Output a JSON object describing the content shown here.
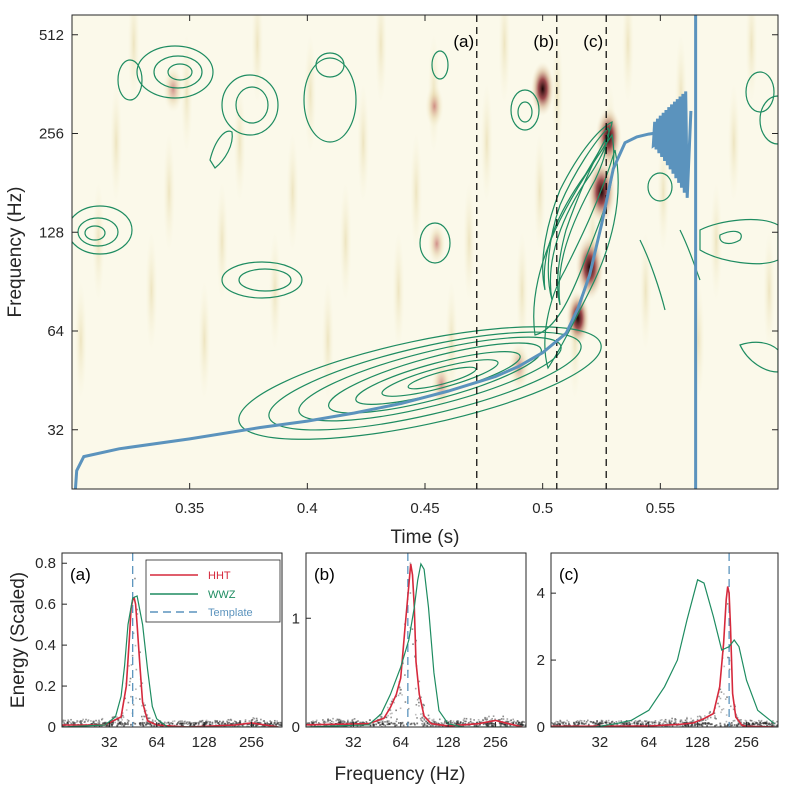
{
  "colors": {
    "hht": "#d6293c",
    "wwz": "#1e8c61",
    "template": "#5b93bd",
    "axis": "#262626",
    "heat_light": "#f7f3d8",
    "heat_mid": "#e4d6a8",
    "heat_dark": "#1a0808"
  },
  "chart_data": [
    {
      "id": "main",
      "type": "heatmap",
      "xlabel": "Time (s)",
      "ylabel": "Frequency (Hz)",
      "xlim": [
        0.3,
        0.6
      ],
      "ylim_log2": [
        4.4,
        9.2
      ],
      "xticks": [
        0.35,
        0.4,
        0.45,
        0.5,
        0.55
      ],
      "xtick_labels": [
        "0.35",
        "0.4",
        "0.45",
        "0.5",
        "0.55"
      ],
      "yticks": [
        32,
        64,
        128,
        256,
        512
      ],
      "ytick_labels": [
        "32",
        "64",
        "128",
        "256",
        "512"
      ],
      "markers": [
        {
          "label": "(a)",
          "time": 0.472
        },
        {
          "label": "(b)",
          "time": 0.506
        },
        {
          "label": "(c)",
          "time": 0.527
        }
      ],
      "template_track": {
        "name": "Template",
        "time": [
          0.301,
          0.302,
          0.305,
          0.32,
          0.35,
          0.38,
          0.4,
          0.42,
          0.44,
          0.46,
          0.48,
          0.49,
          0.5,
          0.51,
          0.515,
          0.52,
          0.525,
          0.53,
          0.535,
          0.54,
          0.545,
          0.55,
          0.555
        ],
        "freq": [
          19,
          24,
          26.5,
          28,
          30,
          32.5,
          34,
          36,
          38.5,
          42,
          46.5,
          50,
          55,
          63,
          75,
          95,
          135,
          200,
          240,
          250,
          255,
          258,
          258
        ]
      },
      "vertical_line_time": 0.565,
      "hot_spots": [
        {
          "time": 0.457,
          "freq": 44,
          "intensity": 0.5
        },
        {
          "time": 0.49,
          "freq": 50,
          "intensity": 0.55
        },
        {
          "time": 0.515,
          "freq": 70,
          "intensity": 0.7
        },
        {
          "time": 0.52,
          "freq": 100,
          "intensity": 1.0
        },
        {
          "time": 0.525,
          "freq": 170,
          "intensity": 1.0
        },
        {
          "time": 0.528,
          "freq": 250,
          "intensity": 0.85
        },
        {
          "time": 0.5,
          "freq": 350,
          "intensity": 0.7
        },
        {
          "time": 0.343,
          "freq": 350,
          "intensity": 0.5
        },
        {
          "time": 0.454,
          "freq": 310,
          "intensity": 0.4
        },
        {
          "time": 0.455,
          "freq": 118,
          "intensity": 0.35
        }
      ]
    },
    {
      "id": "panel_a",
      "type": "line",
      "panel_label": "(a)",
      "ylabel": "Energy (Scaled)",
      "ylim": [
        0,
        0.85
      ],
      "yticks": [
        0,
        0.2,
        0.4,
        0.6,
        0.8
      ],
      "ytick_labels": [
        "0",
        "0.2",
        "0.4",
        "0.6",
        "0.8"
      ],
      "xticks": [
        32,
        64,
        128,
        256
      ],
      "xtick_labels": [
        "32",
        "64",
        "128",
        "256"
      ],
      "template_freq": 45,
      "series": [
        {
          "name": "HHT",
          "freq": [
            16,
            30,
            38,
            41,
            43,
            44,
            45,
            46,
            47,
            48,
            50,
            52,
            56,
            64,
            100,
            200,
            256,
            380
          ],
          "values": [
            0.01,
            0.01,
            0.05,
            0.2,
            0.45,
            0.58,
            0.62,
            0.63,
            0.6,
            0.5,
            0.3,
            0.12,
            0.03,
            0.01,
            0.0,
            0.01,
            0.02,
            0.0
          ]
        },
        {
          "name": "WWZ",
          "freq": [
            16,
            30,
            35,
            38,
            40,
            42,
            45,
            48,
            52,
            56,
            60,
            64,
            75,
            90,
            128,
            200,
            256,
            380
          ],
          "values": [
            0.0,
            0.01,
            0.05,
            0.15,
            0.3,
            0.5,
            0.63,
            0.64,
            0.5,
            0.28,
            0.1,
            0.04,
            0.0,
            0.0,
            0.0,
            0.0,
            0.0,
            0.0
          ]
        }
      ],
      "legend": [
        "HHT",
        "WWZ",
        "Template"
      ]
    },
    {
      "id": "panel_b",
      "type": "line",
      "panel_label": "(b)",
      "ylim": [
        0,
        1.6
      ],
      "yticks": [
        0,
        1
      ],
      "ytick_labels": [
        "0",
        "1"
      ],
      "xticks": [
        32,
        64,
        128,
        256
      ],
      "xtick_labels": [
        "32",
        "64",
        "128",
        "256"
      ],
      "template_freq": 71,
      "series": [
        {
          "name": "HHT",
          "freq": [
            16,
            40,
            50,
            55,
            60,
            64,
            68,
            72,
            74,
            76,
            78,
            80,
            84,
            90,
            100,
            128,
            200,
            256,
            380
          ],
          "values": [
            0.02,
            0.03,
            0.08,
            0.18,
            0.3,
            0.45,
            0.9,
            1.3,
            1.5,
            1.4,
            1.1,
            0.6,
            0.3,
            0.1,
            0.03,
            0.01,
            0.03,
            0.06,
            0.0
          ]
        },
        {
          "name": "WWZ",
          "freq": [
            16,
            40,
            48,
            55,
            64,
            72,
            78,
            82,
            86,
            90,
            96,
            104,
            112,
            128,
            160,
            256,
            380
          ],
          "values": [
            0.0,
            0.02,
            0.12,
            0.3,
            0.55,
            0.8,
            1.1,
            1.35,
            1.5,
            1.45,
            1.1,
            0.5,
            0.15,
            0.03,
            0.0,
            0.0,
            0.0
          ]
        }
      ]
    },
    {
      "id": "panel_c",
      "type": "line",
      "panel_label": "(c)",
      "ylim": [
        0,
        5.2
      ],
      "yticks": [
        0,
        2,
        4
      ],
      "ytick_labels": [
        "0",
        "2",
        "4"
      ],
      "xticks": [
        32,
        64,
        128,
        256
      ],
      "xtick_labels": [
        "32",
        "64",
        "128",
        "256"
      ],
      "template_freq": 200,
      "series": [
        {
          "name": "HHT",
          "freq": [
            16,
            64,
            100,
            120,
            140,
            160,
            175,
            185,
            192,
            196,
            200,
            204,
            210,
            220,
            240,
            256,
            380
          ],
          "values": [
            0.02,
            0.03,
            0.08,
            0.12,
            0.25,
            0.4,
            1.2,
            2.5,
            3.8,
            4.2,
            4.0,
            3.0,
            1.0,
            0.3,
            0.05,
            0.02,
            0.0
          ]
        },
        {
          "name": "WWZ",
          "freq": [
            16,
            30,
            40,
            50,
            64,
            80,
            96,
            110,
            128,
            140,
            160,
            180,
            200,
            215,
            230,
            256,
            300,
            380
          ],
          "values": [
            0.0,
            0.0,
            0.1,
            0.2,
            0.5,
            1.2,
            2.0,
            3.2,
            4.4,
            4.3,
            3.3,
            2.3,
            2.4,
            2.6,
            2.4,
            1.4,
            0.5,
            0.1
          ]
        }
      ]
    }
  ]
}
